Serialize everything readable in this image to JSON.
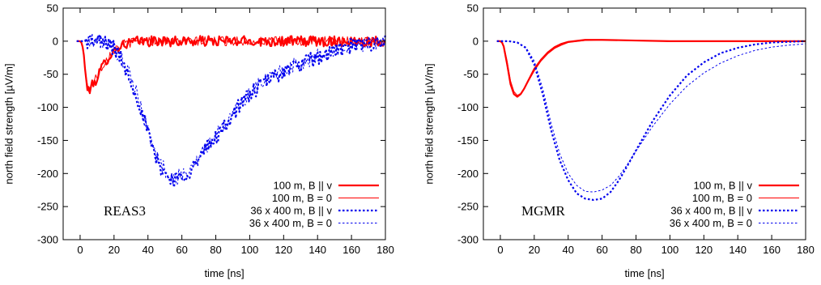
{
  "chart_data": [
    {
      "type": "line",
      "annotation": "REAS3",
      "xlabel": "time [ns]",
      "ylabel": "north field strength [µV/m]",
      "xlim": [
        -10,
        180
      ],
      "ylim": [
        -300,
        50
      ],
      "xticks": [
        0,
        20,
        40,
        60,
        80,
        100,
        120,
        140,
        160,
        180
      ],
      "yticks": [
        50,
        0,
        -50,
        -100,
        -150,
        -200,
        -250,
        -300
      ],
      "grid": false,
      "legend_position": "bottom-right",
      "series": [
        {
          "name": "100 m, B || v",
          "color": "#ff0000",
          "style": "solid-thick",
          "x": [
            -2,
            0,
            1,
            2,
            3,
            4,
            5,
            6,
            8,
            10,
            12,
            15,
            18,
            20,
            22,
            25,
            28,
            30,
            35,
            40,
            45,
            50,
            55,
            60,
            70,
            80,
            90,
            100,
            120,
            140,
            160,
            180
          ],
          "y": [
            0,
            0,
            -3,
            -15,
            -45,
            -70,
            -75,
            -70,
            -65,
            -55,
            -45,
            -30,
            -20,
            -15,
            -10,
            -6,
            -3,
            -2,
            0,
            0,
            0,
            0,
            0,
            0,
            0,
            0,
            0,
            0,
            0,
            0,
            0,
            0
          ],
          "noise": 8
        },
        {
          "name": "100 m, B = 0",
          "color": "#ff0000",
          "style": "solid-thin",
          "x": [
            -2,
            0,
            1,
            2,
            3,
            4,
            5,
            6,
            8,
            10,
            12,
            15,
            18,
            20,
            22,
            25,
            28,
            30,
            35,
            40,
            45,
            50,
            55,
            60,
            70,
            80,
            90,
            100,
            120,
            140,
            160,
            180
          ],
          "y": [
            0,
            0,
            -3,
            -14,
            -42,
            -66,
            -72,
            -68,
            -62,
            -52,
            -43,
            -29,
            -19,
            -14,
            -9,
            -5,
            -3,
            -2,
            0,
            0,
            0,
            0,
            0,
            0,
            0,
            0,
            0,
            0,
            0,
            0,
            0,
            0
          ],
          "noise": 7
        },
        {
          "name": "36 x 400 m, B || v",
          "color": "#0000ee",
          "style": "dotted-thick",
          "x": [
            -2,
            0,
            5,
            10,
            15,
            20,
            25,
            30,
            35,
            40,
            45,
            50,
            55,
            60,
            65,
            70,
            75,
            80,
            85,
            90,
            95,
            100,
            105,
            110,
            120,
            130,
            140,
            150,
            160,
            170,
            180
          ],
          "y": [
            0,
            0,
            0,
            0,
            -2,
            -10,
            -30,
            -60,
            -95,
            -140,
            -180,
            -200,
            -210,
            -205,
            -195,
            -180,
            -160,
            -145,
            -130,
            -110,
            -95,
            -80,
            -70,
            -60,
            -45,
            -35,
            -25,
            -15,
            -8,
            -3,
            0
          ],
          "noise": 12
        },
        {
          "name": "36 x 400 m, B = 0",
          "color": "#0000ee",
          "style": "dotted-thin",
          "x": [
            -2,
            0,
            5,
            10,
            15,
            20,
            25,
            30,
            35,
            40,
            45,
            50,
            55,
            60,
            65,
            70,
            75,
            80,
            85,
            90,
            95,
            100,
            105,
            110,
            120,
            130,
            140,
            150,
            160,
            170,
            180
          ],
          "y": [
            0,
            0,
            0,
            0,
            -2,
            -10,
            -28,
            -58,
            -92,
            -135,
            -175,
            -195,
            -208,
            -203,
            -192,
            -178,
            -158,
            -143,
            -128,
            -108,
            -93,
            -78,
            -68,
            -58,
            -44,
            -34,
            -24,
            -14,
            -7,
            -3,
            0
          ],
          "noise": 12
        }
      ]
    },
    {
      "type": "line",
      "annotation": "MGMR",
      "xlabel": "time [ns]",
      "ylabel": "north field strength [µV/m]",
      "xlim": [
        -10,
        180
      ],
      "ylim": [
        -300,
        50
      ],
      "xticks": [
        0,
        20,
        40,
        60,
        80,
        100,
        120,
        140,
        160,
        180
      ],
      "yticks": [
        50,
        0,
        -50,
        -100,
        -150,
        -200,
        -250,
        -300
      ],
      "grid": false,
      "legend_position": "bottom-right",
      "series": [
        {
          "name": "100 m, B || v",
          "color": "#ff0000",
          "style": "solid-thick",
          "x": [
            -2,
            0,
            1,
            2,
            4,
            6,
            8,
            10,
            12,
            14,
            16,
            18,
            20,
            24,
            28,
            32,
            36,
            40,
            50,
            60,
            80,
            100,
            120,
            140,
            160,
            180
          ],
          "y": [
            0,
            0,
            -2,
            -8,
            -35,
            -65,
            -80,
            -84,
            -80,
            -72,
            -62,
            -52,
            -42,
            -28,
            -17,
            -9,
            -4,
            -1,
            2,
            2,
            1,
            0,
            0,
            0,
            0,
            0
          ],
          "noise": 0
        },
        {
          "name": "100 m, B = 0",
          "color": "#ff0000",
          "style": "solid-thin",
          "x": [
            -2,
            0,
            1,
            2,
            4,
            6,
            8,
            10,
            12,
            14,
            16,
            18,
            20,
            24,
            28,
            32,
            36,
            40,
            50,
            60,
            80,
            100,
            120,
            140,
            160,
            180
          ],
          "y": [
            0,
            0,
            -2,
            -7,
            -30,
            -60,
            -76,
            -82,
            -79,
            -72,
            -63,
            -54,
            -45,
            -30,
            -19,
            -11,
            -6,
            -2,
            1,
            2,
            1,
            0,
            0,
            0,
            0,
            0
          ],
          "noise": 0
        },
        {
          "name": "36 x 400 m, B || v",
          "color": "#0000ee",
          "style": "dotted-thick",
          "x": [
            -2,
            0,
            5,
            10,
            15,
            20,
            25,
            30,
            35,
            40,
            45,
            50,
            55,
            60,
            65,
            70,
            75,
            80,
            90,
            100,
            110,
            120,
            130,
            140,
            150,
            160,
            170,
            180
          ],
          "y": [
            0,
            0,
            0,
            -2,
            -10,
            -35,
            -80,
            -135,
            -180,
            -210,
            -230,
            -238,
            -240,
            -238,
            -228,
            -210,
            -188,
            -165,
            -120,
            -82,
            -52,
            -32,
            -18,
            -10,
            -5,
            -2,
            -1,
            0
          ],
          "noise": 0
        },
        {
          "name": "36 x 400 m, B = 0",
          "color": "#0000ee",
          "style": "dotted-thin",
          "x": [
            -2,
            0,
            5,
            10,
            15,
            20,
            25,
            30,
            35,
            40,
            45,
            50,
            55,
            60,
            65,
            70,
            75,
            80,
            90,
            100,
            110,
            120,
            130,
            140,
            150,
            160,
            170,
            180
          ],
          "y": [
            0,
            0,
            0,
            -2,
            -9,
            -30,
            -72,
            -125,
            -170,
            -200,
            -218,
            -227,
            -228,
            -225,
            -218,
            -204,
            -186,
            -166,
            -128,
            -95,
            -68,
            -48,
            -33,
            -22,
            -14,
            -9,
            -6,
            -4
          ],
          "noise": 0
        }
      ]
    }
  ]
}
